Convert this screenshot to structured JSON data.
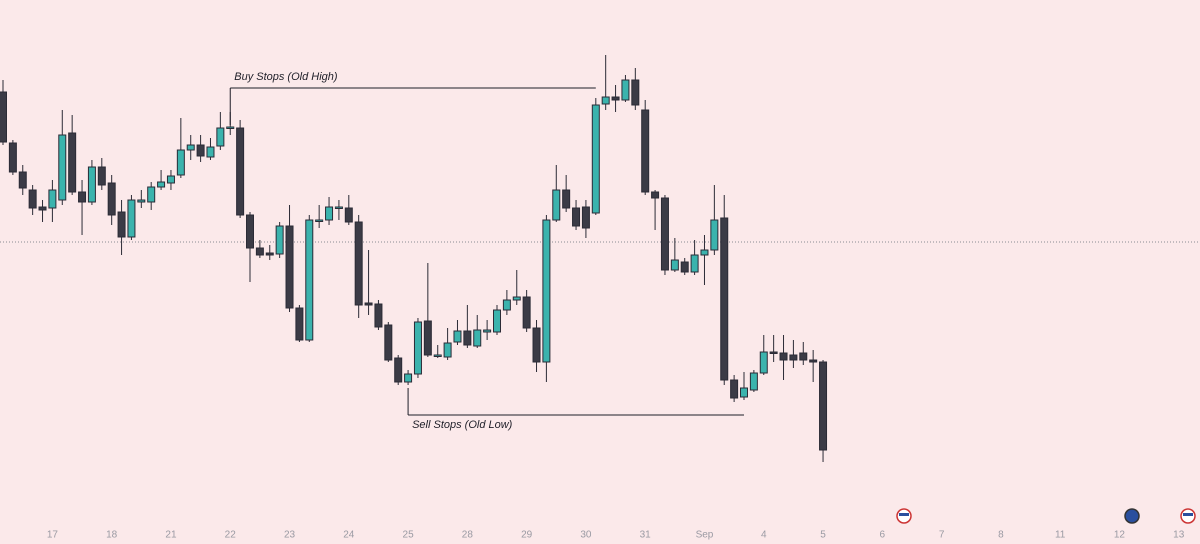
{
  "chart_data": {
    "type": "candlestick",
    "up_color": "#3bb3ad",
    "down_color": "#3b3b46",
    "ylim": [
      0,
      544
    ],
    "xticks": [
      {
        "value": 5,
        "label": "17"
      },
      {
        "value": 11,
        "label": "18"
      },
      {
        "value": 17,
        "label": "21"
      },
      {
        "value": 23,
        "label": "22"
      },
      {
        "value": 29,
        "label": "23"
      },
      {
        "value": 35,
        "label": "24"
      },
      {
        "value": 41,
        "label": "25"
      },
      {
        "value": 47,
        "label": "28"
      },
      {
        "value": 53,
        "label": "29"
      },
      {
        "value": 59,
        "label": "30"
      },
      {
        "value": 65,
        "label": "31"
      },
      {
        "value": 71,
        "label": "Sep"
      },
      {
        "value": 77,
        "label": "4"
      },
      {
        "value": 83,
        "label": "5"
      },
      {
        "value": 89,
        "label": "6"
      },
      {
        "value": 95,
        "label": "7"
      },
      {
        "value": 101,
        "label": "8"
      },
      {
        "value": 107,
        "label": "11"
      },
      {
        "value": 113,
        "label": "12"
      },
      {
        "value": 119,
        "label": "13"
      }
    ],
    "reference_line": 302,
    "annotations": [
      {
        "text": "Buy Stops (Old High)",
        "value": 456,
        "x_start": 23,
        "x_end": 60
      },
      {
        "text": "Sell Stops (Old Low)",
        "value": 129,
        "x_start": 41,
        "x_end": 75
      }
    ],
    "open": [
      452,
      401,
      372,
      354,
      337,
      336,
      344,
      411,
      352,
      342,
      377,
      361,
      332,
      307,
      342,
      342,
      357,
      361,
      369,
      394,
      399,
      387,
      398,
      416,
      416,
      329,
      296,
      291,
      290,
      318,
      236,
      204,
      324,
      324,
      337,
      336,
      322,
      241,
      240,
      219,
      186,
      162,
      170,
      223,
      188,
      187,
      202,
      213,
      198,
      212,
      212,
      234,
      244,
      247,
      216,
      182,
      324,
      354,
      336,
      337,
      331,
      440,
      447,
      444,
      464,
      434,
      352,
      346,
      274,
      282,
      272,
      289,
      294,
      326,
      164,
      147,
      154,
      171,
      192,
      191,
      189,
      191,
      184,
      182
    ],
    "high": [
      464,
      404,
      379,
      359,
      344,
      364,
      434,
      429,
      364,
      384,
      386,
      369,
      344,
      349,
      354,
      362,
      374,
      374,
      426,
      409,
      409,
      406,
      432,
      432,
      424,
      332,
      304,
      299,
      322,
      339,
      239,
      329,
      339,
      347,
      344,
      349,
      329,
      294,
      244,
      222,
      189,
      174,
      226,
      281,
      199,
      216,
      224,
      239,
      229,
      224,
      239,
      254,
      274,
      254,
      224,
      329,
      379,
      369,
      344,
      344,
      446,
      489,
      459,
      469,
      476,
      444,
      354,
      349,
      306,
      286,
      304,
      309,
      359,
      349,
      169,
      172,
      174,
      209,
      209,
      209,
      204,
      202,
      194,
      184
    ],
    "low": [
      399,
      369,
      349,
      329,
      322,
      322,
      339,
      349,
      309,
      339,
      354,
      319,
      289,
      304,
      336,
      334,
      354,
      354,
      366,
      384,
      382,
      384,
      394,
      409,
      326,
      262,
      286,
      284,
      286,
      232,
      202,
      202,
      316,
      319,
      324,
      319,
      226,
      229,
      214,
      182,
      159,
      159,
      166,
      187,
      186,
      184,
      199,
      196,
      196,
      204,
      209,
      229,
      239,
      212,
      172,
      162,
      322,
      332,
      314,
      306,
      329,
      434,
      432,
      442,
      434,
      349,
      314,
      269,
      272,
      269,
      269,
      259,
      289,
      159,
      142,
      144,
      152,
      169,
      182,
      164,
      176,
      179,
      162,
      82
    ],
    "close": [
      402,
      372,
      356,
      336,
      334,
      354,
      409,
      352,
      342,
      377,
      359,
      329,
      307,
      344,
      344,
      357,
      362,
      368,
      394,
      399,
      388,
      397,
      416,
      417,
      329,
      296,
      289,
      289,
      318,
      236,
      204,
      324,
      324,
      337,
      337,
      322,
      239,
      239,
      217,
      184,
      162,
      170,
      222,
      189,
      189,
      201,
      213,
      199,
      214,
      214,
      234,
      244,
      247,
      216,
      182,
      324,
      354,
      336,
      318,
      316,
      439,
      447,
      444,
      464,
      439,
      352,
      346,
      274,
      284,
      272,
      289,
      294,
      324,
      164,
      146,
      156,
      171,
      192,
      191,
      184,
      184,
      184,
      182,
      94
    ]
  }
}
